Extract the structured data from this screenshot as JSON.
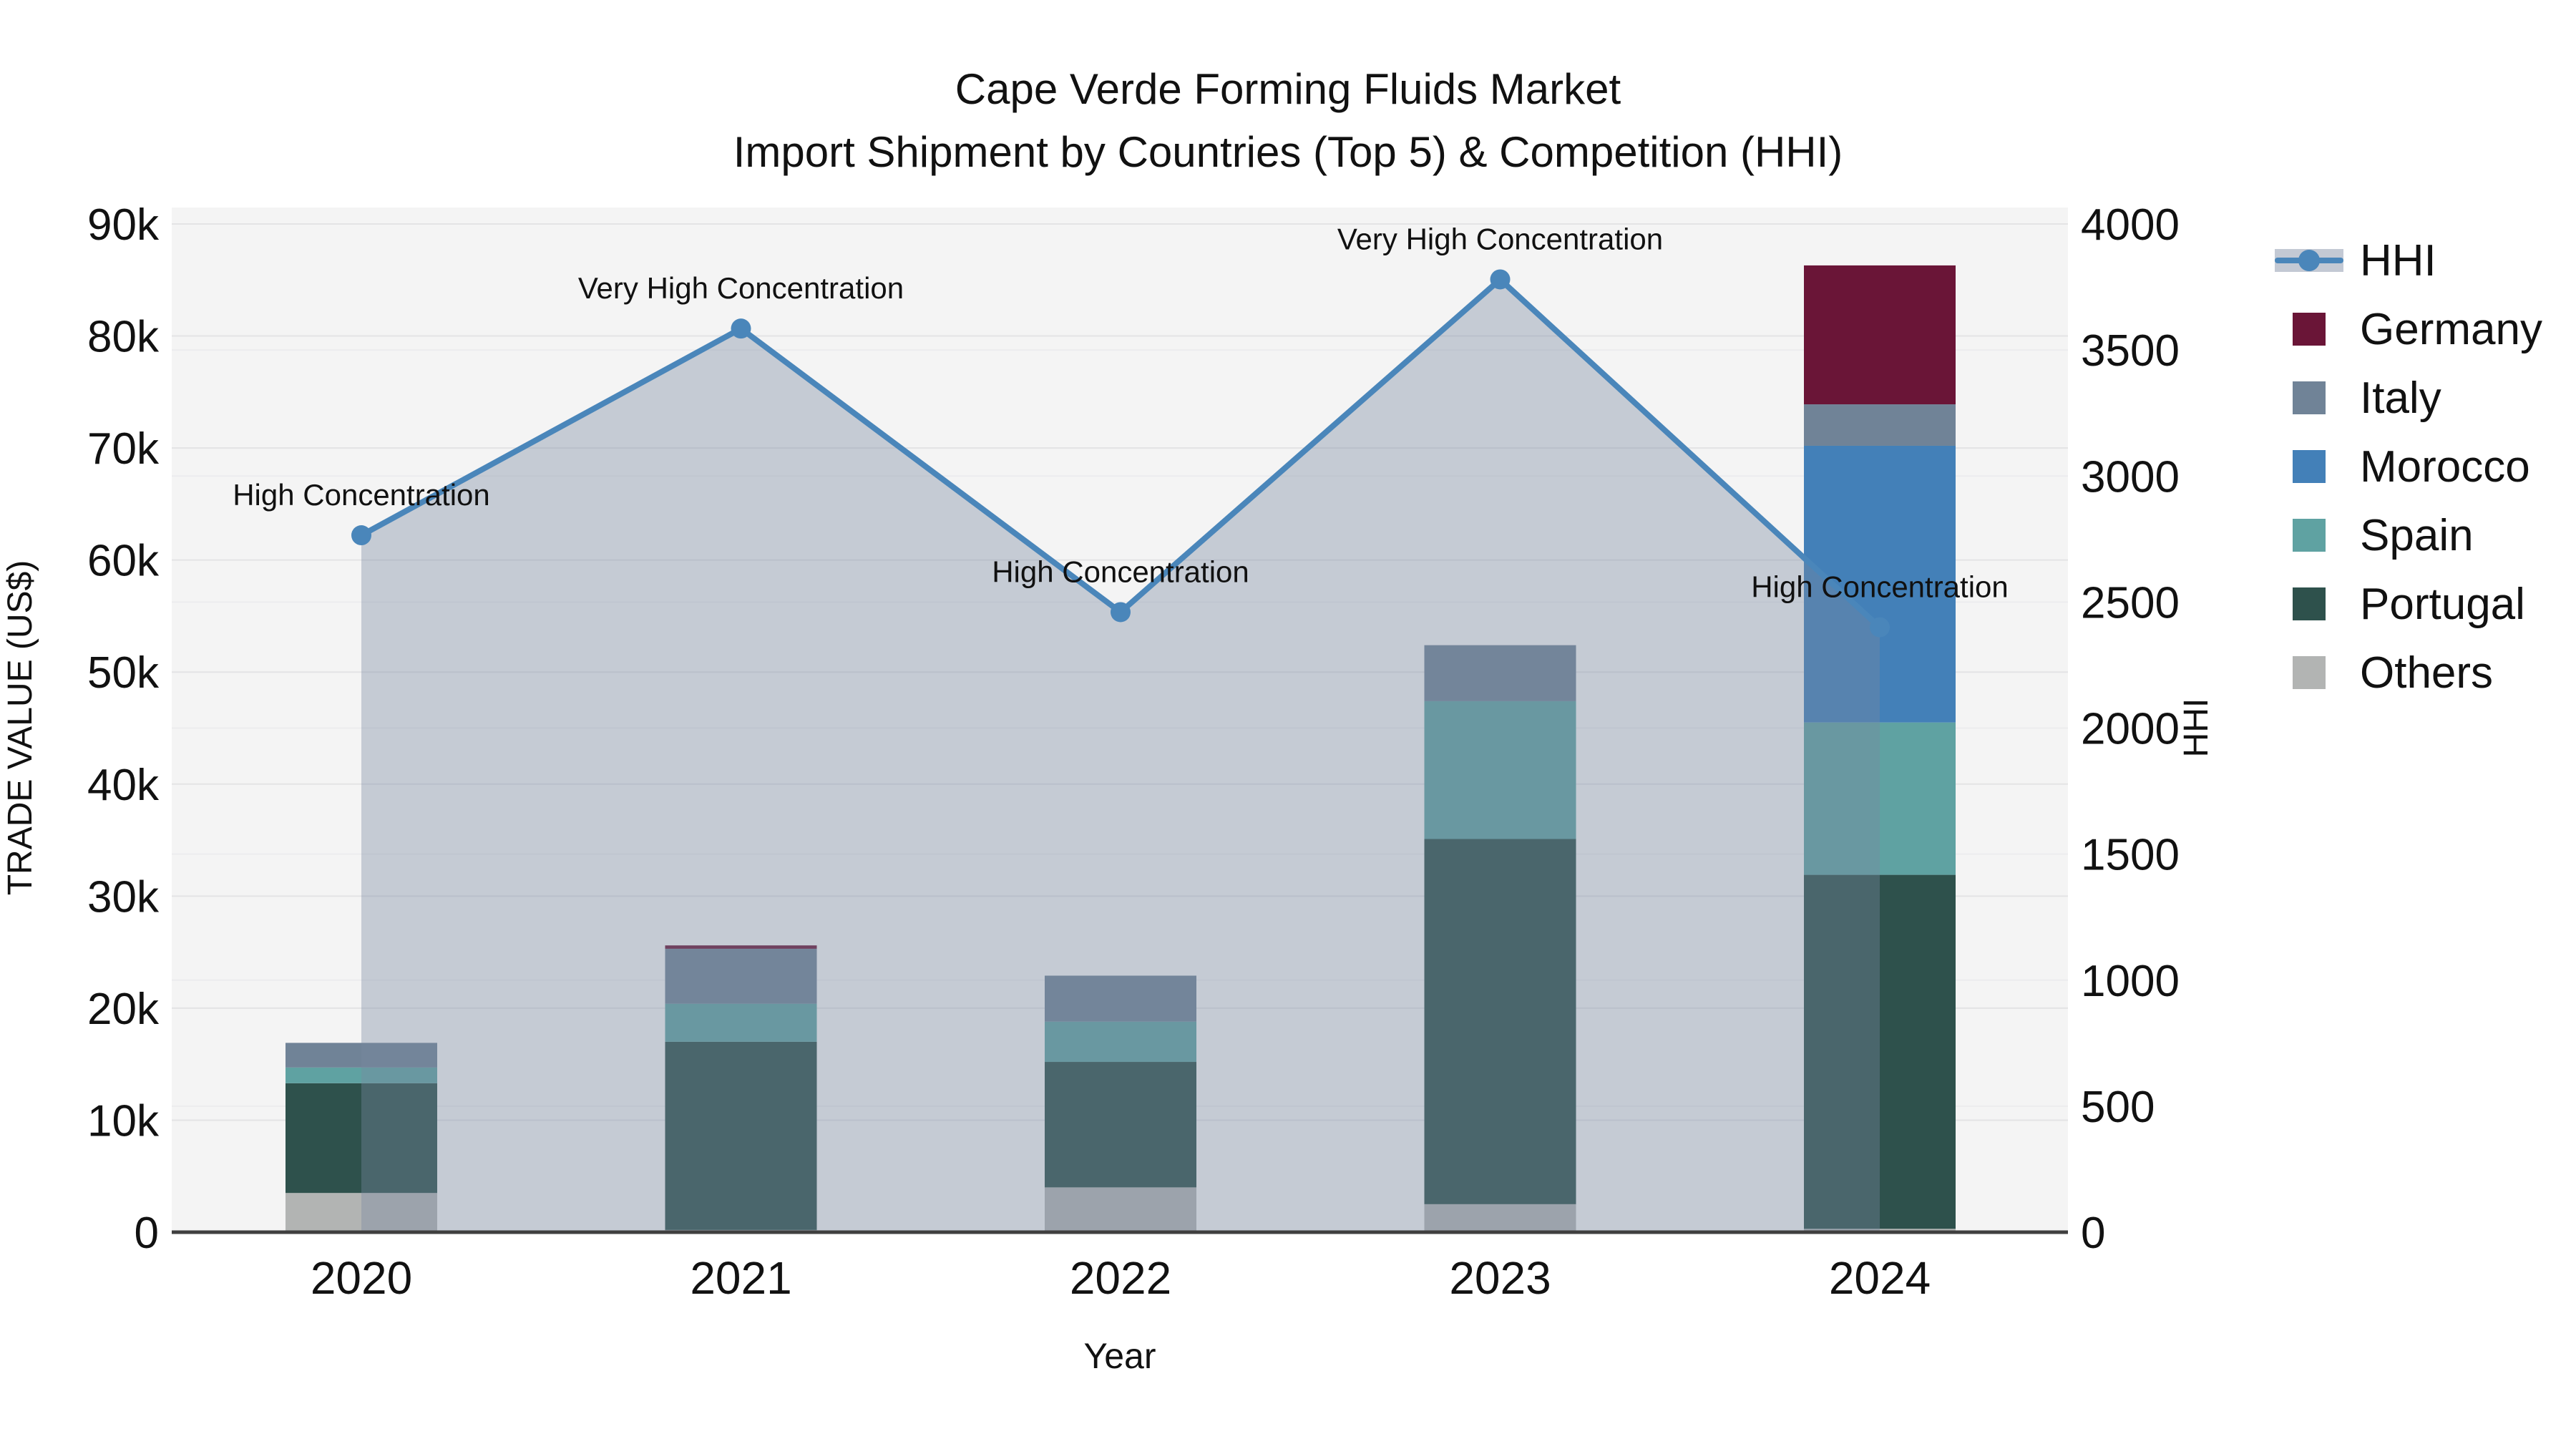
{
  "title": {
    "line1": "Cape Verde Forming Fluids Market",
    "line2": "Import Shipment by Countries (Top 5) & Competition (HHI)"
  },
  "axes": {
    "x_label": "Year",
    "y_left_label": "TRADE VALUE (US$)",
    "y_right_label": "HHI",
    "y_left_tick_labels": [
      "0",
      "10k",
      "20k",
      "30k",
      "40k",
      "50k",
      "60k",
      "70k",
      "80k",
      "90k"
    ],
    "y_right_tick_labels": [
      "0",
      "500",
      "1000",
      "1500",
      "2000",
      "2500",
      "3000",
      "3500",
      "4000"
    ]
  },
  "chart_data": {
    "type": "combo: stacked bar (left axis) + line with shaded area (right axis)",
    "categories": [
      "2020",
      "2021",
      "2022",
      "2023",
      "2024"
    ],
    "x": {
      "label": "Year"
    },
    "y_left": {
      "label": "TRADE VALUE (US$)",
      "min": 0,
      "max": 90000,
      "tick_step": 10000
    },
    "y_right": {
      "label": "HHI",
      "min": 0,
      "max": 4000,
      "tick_step": 500
    },
    "grid": true,
    "legend_position": "right",
    "plot_bg": "#f4f4f4",
    "bar_series_bottom_to_top": [
      {
        "name": "Others",
        "color": "#b2b4b3",
        "values_k": [
          3.5,
          0.2,
          4.0,
          2.5,
          0.3
        ]
      },
      {
        "name": "Portugal",
        "color": "#2e514c",
        "values_k": [
          9.8,
          16.8,
          11.2,
          32.6,
          31.6
        ]
      },
      {
        "name": "Spain",
        "color": "#5fa2a2",
        "values_k": [
          1.4,
          3.4,
          3.6,
          12.3,
          13.6
        ]
      },
      {
        "name": "Morocco",
        "color": "#4380b8",
        "values_k": [
          0,
          0,
          0,
          0,
          24.7
        ]
      },
      {
        "name": "Italy",
        "color": "#708397",
        "values_k": [
          2.2,
          4.9,
          4.1,
          5.0,
          3.7
        ]
      },
      {
        "name": "Germany",
        "color": "#6a1537",
        "values_k": [
          0,
          0.3,
          0,
          0,
          12.4
        ]
      }
    ],
    "bar_totals_k": [
      16.9,
      25.6,
      22.9,
      52.4,
      86.3
    ],
    "line_series": {
      "name": "HHI",
      "color": "#4a86ba",
      "area_color": "rgba(122,136,160,0.38)",
      "values": [
        2765,
        3585,
        2460,
        3780,
        2400
      ]
    },
    "annotations": [
      "High Concentration",
      "Very High Concentration",
      "High Concentration",
      "Very High Concentration",
      "High Concentration"
    ]
  },
  "legend": {
    "items": [
      {
        "label": "HHI",
        "type": "line",
        "color": "#4a86ba",
        "band_color": "rgba(122,136,160,0.45)"
      },
      {
        "label": "Germany",
        "type": "square",
        "color": "#6a1537"
      },
      {
        "label": "Italy",
        "type": "square",
        "color": "#708397"
      },
      {
        "label": "Morocco",
        "type": "square",
        "color": "#4380b8"
      },
      {
        "label": "Spain",
        "type": "square",
        "color": "#5fa2a2"
      },
      {
        "label": "Portugal",
        "type": "square",
        "color": "#2e514c"
      },
      {
        "label": "Others",
        "type": "square",
        "color": "#b2b4b3"
      }
    ]
  }
}
